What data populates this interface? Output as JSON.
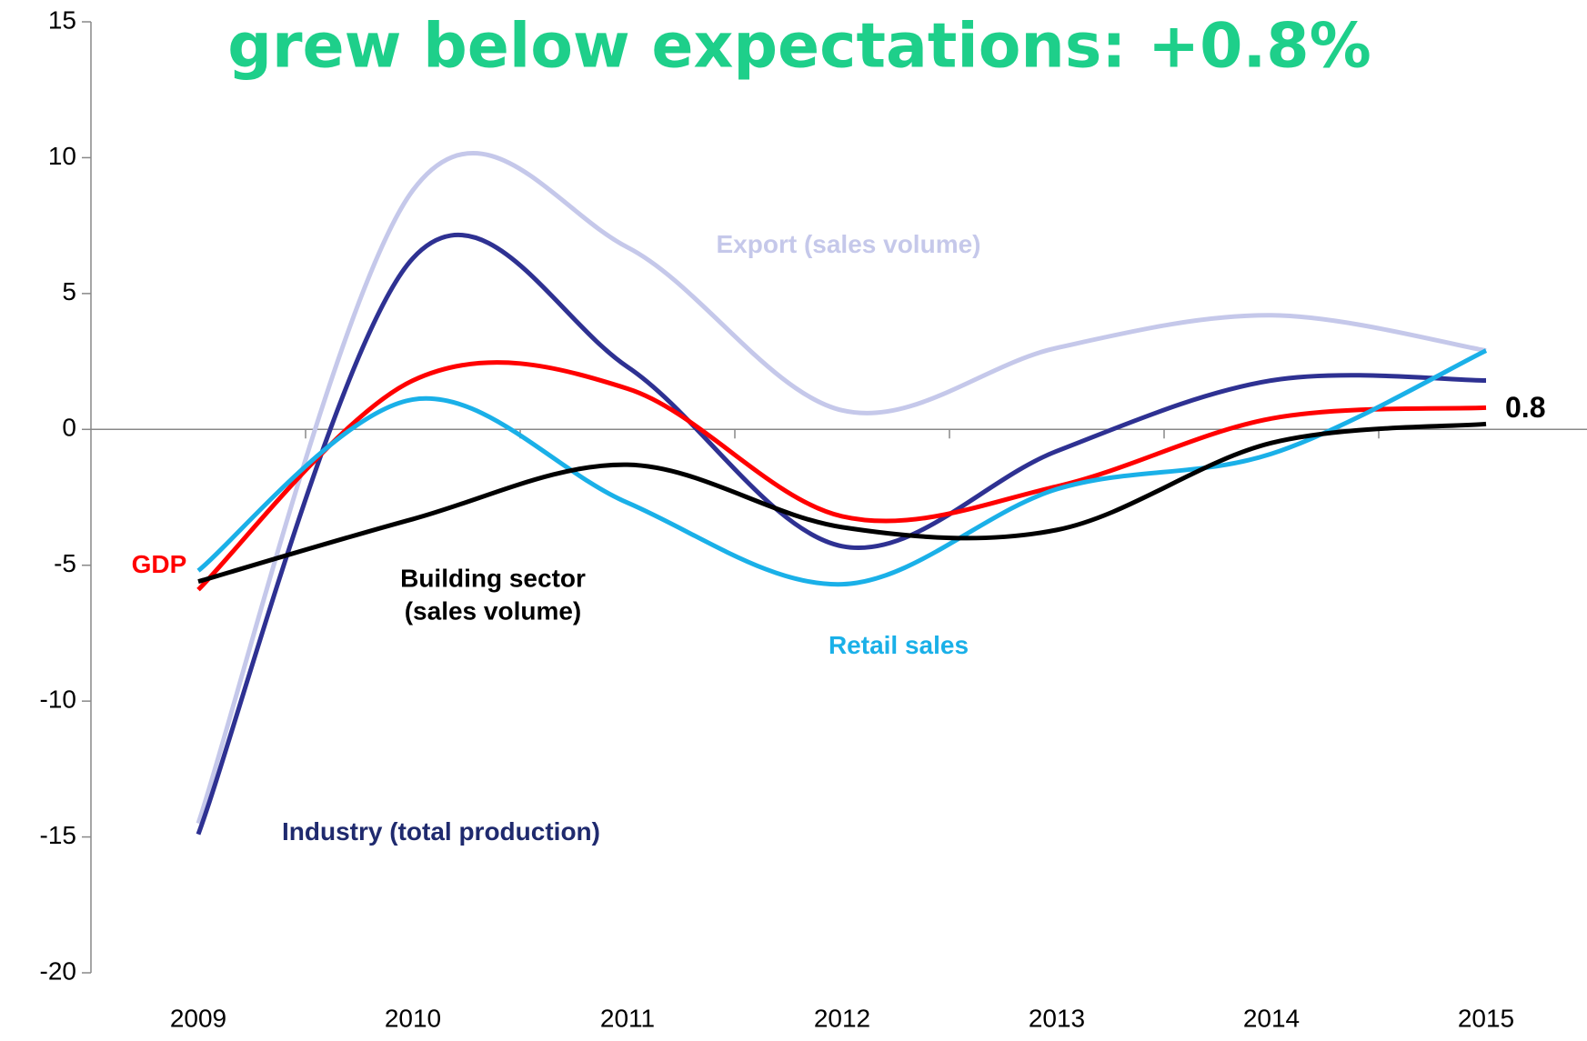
{
  "chart_data": {
    "type": "line",
    "title": "grew below expectations: +0.8%",
    "categories": [
      "2009",
      "2010",
      "2011",
      "2012",
      "2013",
      "2014",
      "2015"
    ],
    "ylim": [
      -20,
      15
    ],
    "yticks": [
      -20,
      -15,
      -10,
      -5,
      0,
      5,
      10,
      15
    ],
    "series": [
      {
        "name": "Export (sales volume)",
        "color": "#c5c8ea",
        "values": [
          -14.5,
          8.8,
          6.7,
          0.7,
          3.0,
          4.2,
          2.9
        ]
      },
      {
        "name": "Industry (total production)",
        "color": "#2e3192",
        "values": [
          -14.9,
          6.3,
          2.3,
          -4.3,
          -0.8,
          1.8,
          1.8
        ]
      },
      {
        "name": "GDP",
        "color": "#ff0000",
        "values": [
          -5.9,
          1.8,
          1.5,
          -3.2,
          -2.1,
          0.4,
          0.8
        ]
      },
      {
        "name": "Retail sales",
        "color": "#1ab0e8",
        "values": [
          -5.2,
          1.1,
          -2.7,
          -5.7,
          -2.2,
          -0.9,
          2.9
        ]
      },
      {
        "name": "Building sector (sales volume)",
        "color": "#000000",
        "values": [
          -5.6,
          -3.3,
          -1.3,
          -3.6,
          -3.7,
          -0.5,
          0.2
        ]
      }
    ]
  }
}
